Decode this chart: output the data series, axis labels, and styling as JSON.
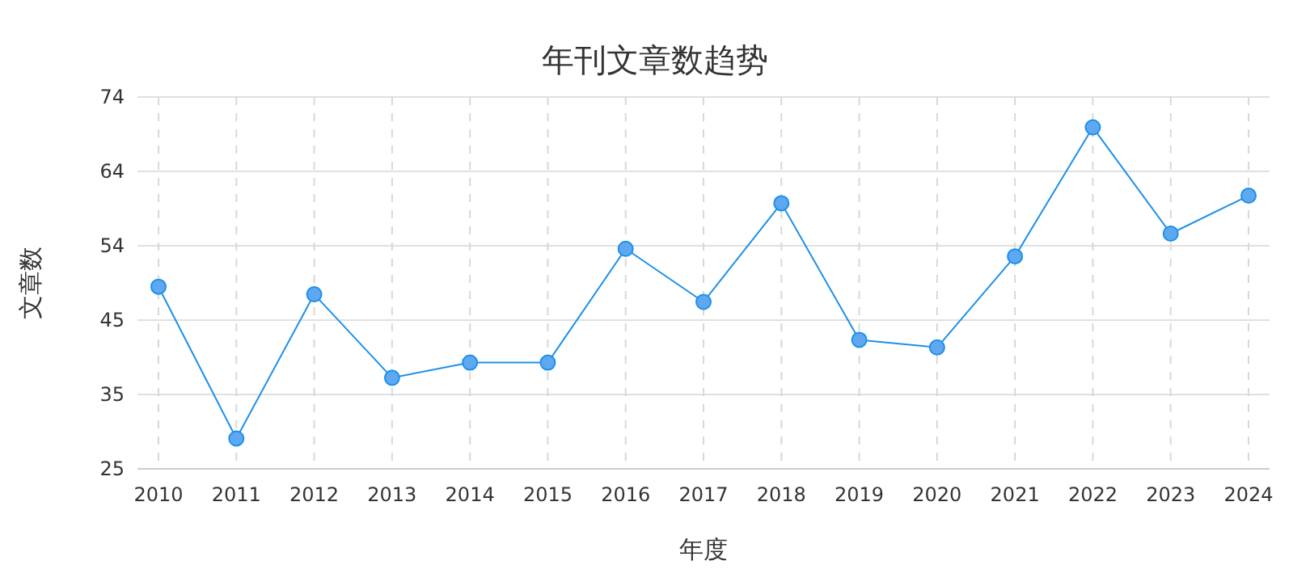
{
  "chart_data": {
    "type": "line",
    "title": "年刊文章数趋势",
    "xlabel": "年度",
    "ylabel": "文章数",
    "categories": [
      "2010",
      "2011",
      "2012",
      "2013",
      "2014",
      "2015",
      "2016",
      "2017",
      "2018",
      "2019",
      "2020",
      "2021",
      "2022",
      "2023",
      "2024"
    ],
    "series": [
      {
        "color": "#1e90e8",
        "values": [
          49,
          29,
          48,
          37,
          39,
          39,
          54,
          47,
          60,
          42,
          41,
          53,
          70,
          56,
          61
        ]
      }
    ],
    "ylim": [
      25,
      74
    ],
    "yticks": [
      25,
      {
        "value": 34.8,
        "label": "35"
      },
      {
        "value": 44.6,
        "label": "45"
      },
      {
        "value": 54.4,
        "label": "54"
      },
      {
        "value": 64.2,
        "label": "64"
      },
      74
    ],
    "grid": true,
    "marker": "circle",
    "line_style": "solid"
  }
}
